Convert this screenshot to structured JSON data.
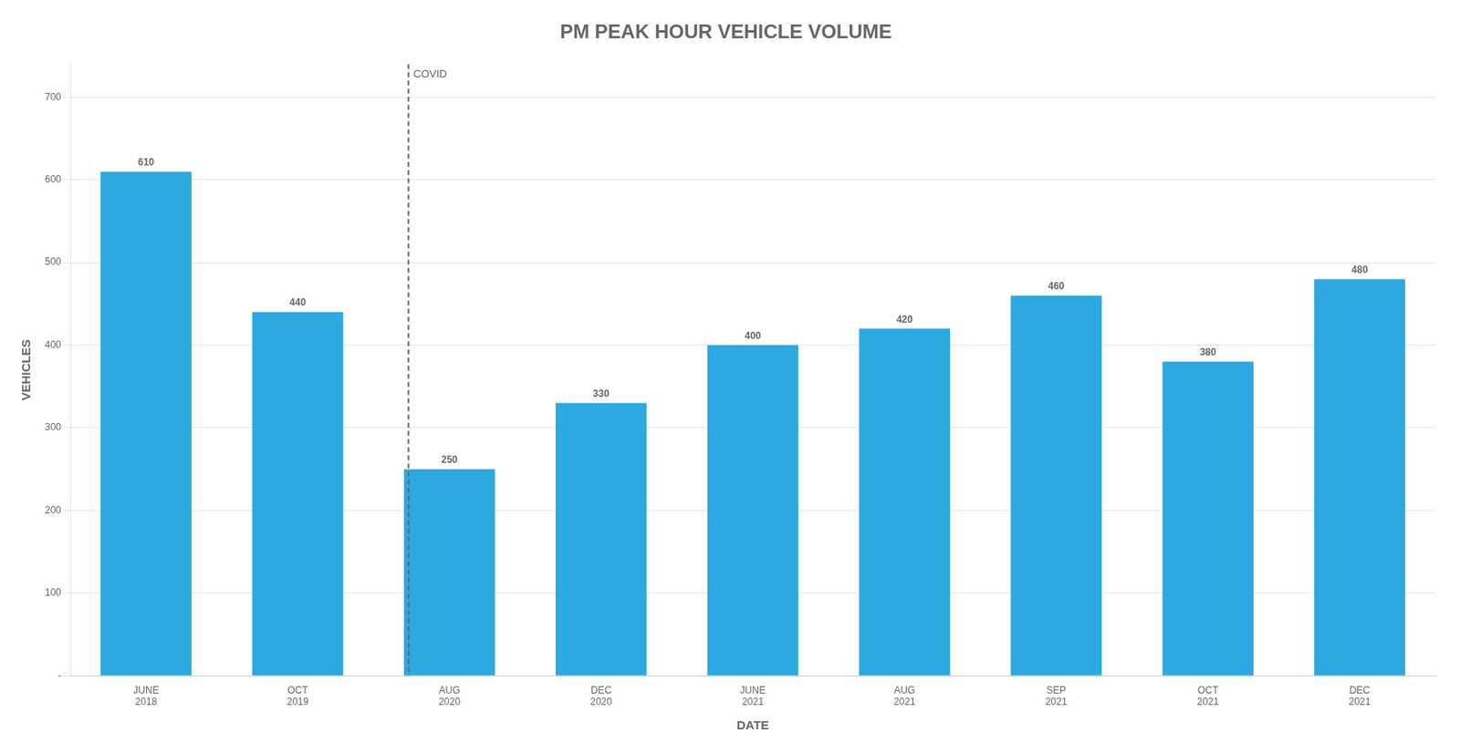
{
  "chart_data": {
    "type": "bar",
    "title": "PM PEAK HOUR VEHICLE VOLUME",
    "xlabel": "DATE",
    "ylabel": "VEHICLES",
    "categories": [
      "JUNE\n2018",
      "OCT\n2019",
      "AUG\n2020",
      "DEC\n2020",
      "JUNE\n2021",
      "AUG\n2021",
      "SEP\n2021",
      "OCT\n2021",
      "DEC\n2021"
    ],
    "values": [
      610,
      440,
      250,
      330,
      400,
      420,
      460,
      380,
      480
    ],
    "color": "#2DA8E0",
    "ylim": [
      0,
      740
    ],
    "yticks": [
      {
        "value": 0,
        "label": "-"
      },
      100,
      200,
      300,
      400,
      500,
      600,
      700
    ],
    "grid": "y",
    "data_labels": true,
    "annotations": [
      {
        "text": "COVID",
        "x": 1.73,
        "line_style": "dashed"
      }
    ]
  }
}
